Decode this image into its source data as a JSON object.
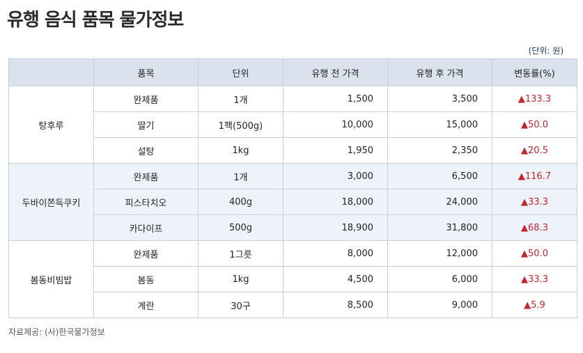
{
  "title": "유행 음식 품목 물가정보",
  "unit_note": "(단위: 원)",
  "columns": [
    "",
    "품목",
    "단위",
    "유행 전 가격",
    "유행 후 가격",
    "변동률(%)"
  ],
  "groups": [
    {
      "name": "탕후루",
      "rows": [
        {
          "item": "완제품",
          "unit": "1개",
          "before": "1,500",
          "after": "3,500",
          "change": "▲133.3"
        },
        {
          "item": "딸기",
          "unit": "1팩(500g)",
          "before": "10,000",
          "after": "15,000",
          "change": "▲50.0"
        },
        {
          "item": "설탕",
          "unit": "1kg",
          "before": "1,950",
          "after": "2,350",
          "change": "▲20.5"
        }
      ]
    },
    {
      "name": "두바이쫀득쿠키",
      "rows": [
        {
          "item": "완제품",
          "unit": "1개",
          "before": "3,000",
          "after": "6,500",
          "change": "▲116.7"
        },
        {
          "item": "피스타치오",
          "unit": "400g",
          "before": "18,000",
          "after": "24,000",
          "change": "▲33.3"
        },
        {
          "item": "카다이프",
          "unit": "500g",
          "before": "18,900",
          "after": "31,800",
          "change": "▲68.3"
        }
      ]
    },
    {
      "name": "봄동비빔밥",
      "rows": [
        {
          "item": "완제품",
          "unit": "1그릇",
          "before": "8,000",
          "after": "12,000",
          "change": "▲50.0"
        },
        {
          "item": "봄동",
          "unit": "1kg",
          "before": "4,500",
          "after": "6,000",
          "change": "▲33.3"
        },
        {
          "item": "계란",
          "unit": "30구",
          "before": "8,500",
          "after": "9,000",
          "change": "▲5.9"
        }
      ]
    }
  ],
  "source": "자료제공: (사)한국물가정보",
  "colors": {
    "header_bg": "#dae2ed",
    "tint_bg": "#eef3fa",
    "border": "#c5cfdc",
    "change_red": "#c8232c",
    "unit_note_blue": "#1e3a78"
  }
}
